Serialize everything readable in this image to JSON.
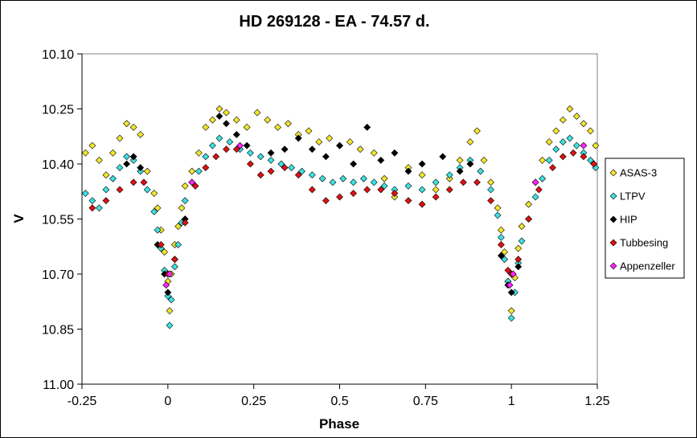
{
  "chart_data": {
    "type": "scatter",
    "title": "HD 269128  - EA - 74.57 d.",
    "xlabel": "Phase",
    "ylabel": "V",
    "xlim": [
      -0.25,
      1.25
    ],
    "ylim": [
      10.1,
      11.0
    ],
    "y_inverted": true,
    "x_ticks": [
      -0.25,
      0,
      0.25,
      0.5,
      0.75,
      1,
      1.25
    ],
    "x_tick_labels": [
      "-0.25",
      "0",
      "0.25",
      "0.5",
      "0.75",
      "1",
      "1.25"
    ],
    "y_ticks": [
      10.1,
      10.25,
      10.4,
      10.55,
      10.7,
      10.85,
      11.0
    ],
    "y_tick_labels": [
      "10.10",
      "10.25",
      "10.40",
      "10.55",
      "10.70",
      "10.85",
      "11.00"
    ],
    "grid": false,
    "legend_position": "right",
    "marker": "diamond",
    "series": [
      {
        "name": "ASAS-3",
        "color": "#f2e62e",
        "points": [
          [
            -0.24,
            10.37
          ],
          [
            -0.22,
            10.35
          ],
          [
            -0.2,
            10.39
          ],
          [
            -0.18,
            10.43
          ],
          [
            -0.16,
            10.37
          ],
          [
            -0.14,
            10.33
          ],
          [
            -0.12,
            10.29
          ],
          [
            -0.1,
            10.3
          ],
          [
            -0.08,
            10.32
          ],
          [
            -0.06,
            10.42
          ],
          [
            -0.04,
            10.48
          ],
          [
            -0.03,
            10.52
          ],
          [
            -0.02,
            10.58
          ],
          [
            -0.01,
            10.64
          ],
          [
            0,
            10.72
          ],
          [
            0.005,
            10.8
          ],
          [
            0.01,
            10.7
          ],
          [
            0.02,
            10.62
          ],
          [
            0.03,
            10.57
          ],
          [
            0.04,
            10.52
          ],
          [
            0.05,
            10.46
          ],
          [
            0.07,
            10.42
          ],
          [
            0.09,
            10.37
          ],
          [
            0.11,
            10.3
          ],
          [
            0.13,
            10.28
          ],
          [
            0.15,
            10.25
          ],
          [
            0.17,
            10.26
          ],
          [
            0.2,
            10.28
          ],
          [
            0.23,
            10.3
          ],
          [
            0.26,
            10.26
          ],
          [
            0.29,
            10.28
          ],
          [
            0.32,
            10.3
          ],
          [
            0.35,
            10.29
          ],
          [
            0.38,
            10.32
          ],
          [
            0.41,
            10.31
          ],
          [
            0.44,
            10.34
          ],
          [
            0.47,
            10.33
          ],
          [
            0.5,
            10.35
          ],
          [
            0.53,
            10.34
          ],
          [
            0.56,
            10.36
          ],
          [
            0.6,
            10.37
          ],
          [
            0.63,
            10.44
          ],
          [
            0.66,
            10.49
          ],
          [
            0.7,
            10.41
          ],
          [
            0.74,
            10.43
          ],
          [
            0.78,
            10.47
          ],
          [
            0.82,
            10.44
          ],
          [
            0.85,
            10.39
          ],
          [
            0.88,
            10.34
          ],
          [
            0.9,
            10.31
          ],
          [
            0.92,
            10.39
          ],
          [
            0.94,
            10.45
          ],
          [
            0.96,
            10.52
          ],
          [
            0.97,
            10.58
          ],
          [
            0.98,
            10.64
          ],
          [
            0.99,
            10.72
          ],
          [
            1.0,
            10.8
          ],
          [
            1.01,
            10.71
          ],
          [
            1.02,
            10.63
          ],
          [
            1.03,
            10.57
          ],
          [
            1.05,
            10.51
          ],
          [
            1.07,
            10.45
          ],
          [
            1.09,
            10.39
          ],
          [
            1.11,
            10.34
          ],
          [
            1.13,
            10.31
          ],
          [
            1.15,
            10.28
          ],
          [
            1.17,
            10.25
          ],
          [
            1.19,
            10.27
          ],
          [
            1.21,
            10.29
          ],
          [
            1.23,
            10.31
          ],
          [
            1.245,
            10.35
          ]
        ]
      },
      {
        "name": "LTPV",
        "color": "#3de0e0",
        "points": [
          [
            -0.24,
            10.48
          ],
          [
            -0.22,
            10.5
          ],
          [
            -0.2,
            10.52
          ],
          [
            -0.18,
            10.47
          ],
          [
            -0.16,
            10.44
          ],
          [
            -0.14,
            10.41
          ],
          [
            -0.12,
            10.38
          ],
          [
            -0.1,
            10.39
          ],
          [
            -0.08,
            10.42
          ],
          [
            -0.06,
            10.47
          ],
          [
            -0.04,
            10.53
          ],
          [
            -0.03,
            10.58
          ],
          [
            -0.02,
            10.63
          ],
          [
            -0.01,
            10.69
          ],
          [
            0,
            10.76
          ],
          [
            0.005,
            10.84
          ],
          [
            0.01,
            10.77
          ],
          [
            0.02,
            10.68
          ],
          [
            0.03,
            10.62
          ],
          [
            0.04,
            10.56
          ],
          [
            0.05,
            10.5
          ],
          [
            0.07,
            10.45
          ],
          [
            0.09,
            10.42
          ],
          [
            0.11,
            10.38
          ],
          [
            0.13,
            10.35
          ],
          [
            0.15,
            10.33
          ],
          [
            0.18,
            10.34
          ],
          [
            0.21,
            10.36
          ],
          [
            0.24,
            10.37
          ],
          [
            0.27,
            10.38
          ],
          [
            0.3,
            10.39
          ],
          [
            0.33,
            10.4
          ],
          [
            0.36,
            10.41
          ],
          [
            0.39,
            10.42
          ],
          [
            0.42,
            10.43
          ],
          [
            0.45,
            10.44
          ],
          [
            0.48,
            10.45
          ],
          [
            0.51,
            10.44
          ],
          [
            0.54,
            10.45
          ],
          [
            0.57,
            10.44
          ],
          [
            0.6,
            10.45
          ],
          [
            0.63,
            10.46
          ],
          [
            0.66,
            10.47
          ],
          [
            0.7,
            10.46
          ],
          [
            0.74,
            10.47
          ],
          [
            0.78,
            10.45
          ],
          [
            0.82,
            10.43
          ],
          [
            0.85,
            10.41
          ],
          [
            0.88,
            10.39
          ],
          [
            0.91,
            10.42
          ],
          [
            0.94,
            10.47
          ],
          [
            0.96,
            10.54
          ],
          [
            0.97,
            10.6
          ],
          [
            0.98,
            10.66
          ],
          [
            0.99,
            10.72
          ],
          [
            1.0,
            10.82
          ],
          [
            1.01,
            10.75
          ],
          [
            1.02,
            10.67
          ],
          [
            1.03,
            10.61
          ],
          [
            1.05,
            10.55
          ],
          [
            1.07,
            10.49
          ],
          [
            1.09,
            10.44
          ],
          [
            1.11,
            10.39
          ],
          [
            1.13,
            10.36
          ],
          [
            1.15,
            10.34
          ],
          [
            1.17,
            10.33
          ],
          [
            1.19,
            10.35
          ],
          [
            1.21,
            10.37
          ],
          [
            1.23,
            10.39
          ],
          [
            1.245,
            10.41
          ]
        ]
      },
      {
        "name": "HIP",
        "color": "#000000",
        "points": [
          [
            -0.12,
            10.4
          ],
          [
            -0.1,
            10.38
          ],
          [
            -0.08,
            10.41
          ],
          [
            -0.03,
            10.62
          ],
          [
            -0.01,
            10.7
          ],
          [
            0,
            10.75
          ],
          [
            0.02,
            10.66
          ],
          [
            0.05,
            10.55
          ],
          [
            0.15,
            10.27
          ],
          [
            0.17,
            10.29
          ],
          [
            0.2,
            10.32
          ],
          [
            0.23,
            10.35
          ],
          [
            0.3,
            10.37
          ],
          [
            0.34,
            10.36
          ],
          [
            0.38,
            10.33
          ],
          [
            0.42,
            10.36
          ],
          [
            0.46,
            10.38
          ],
          [
            0.5,
            10.35
          ],
          [
            0.54,
            10.4
          ],
          [
            0.58,
            10.3
          ],
          [
            0.62,
            10.39
          ],
          [
            0.66,
            10.37
          ],
          [
            0.7,
            10.42
          ],
          [
            0.74,
            10.4
          ],
          [
            0.8,
            10.38
          ],
          [
            0.85,
            10.42
          ],
          [
            0.88,
            10.4
          ],
          [
            0.97,
            10.65
          ],
          [
            0.99,
            10.73
          ],
          [
            1.0,
            10.75
          ],
          [
            1.02,
            10.68
          ]
        ]
      },
      {
        "name": "Tubbesing",
        "color": "#dd1111",
        "points": [
          [
            -0.22,
            10.52
          ],
          [
            -0.18,
            10.5
          ],
          [
            -0.14,
            10.47
          ],
          [
            -0.1,
            10.45
          ],
          [
            -0.07,
            10.45
          ],
          [
            -0.02,
            10.62
          ],
          [
            0,
            10.7
          ],
          [
            0.02,
            10.66
          ],
          [
            0.05,
            10.56
          ],
          [
            0.08,
            10.46
          ],
          [
            0.11,
            10.41
          ],
          [
            0.14,
            10.38
          ],
          [
            0.17,
            10.36
          ],
          [
            0.2,
            10.36
          ],
          [
            0.24,
            10.4
          ],
          [
            0.27,
            10.43
          ],
          [
            0.3,
            10.42
          ],
          [
            0.34,
            10.41
          ],
          [
            0.38,
            10.43
          ],
          [
            0.42,
            10.47
          ],
          [
            0.46,
            10.5
          ],
          [
            0.5,
            10.49
          ],
          [
            0.54,
            10.48
          ],
          [
            0.58,
            10.47
          ],
          [
            0.62,
            10.47
          ],
          [
            0.66,
            10.48
          ],
          [
            0.7,
            10.5
          ],
          [
            0.74,
            10.51
          ],
          [
            0.78,
            10.49
          ],
          [
            0.82,
            10.47
          ],
          [
            0.86,
            10.45
          ],
          [
            0.9,
            10.45
          ],
          [
            0.94,
            10.5
          ],
          [
            0.97,
            10.62
          ],
          [
            0.99,
            10.69
          ],
          [
            1.0,
            10.7
          ],
          [
            1.02,
            10.66
          ],
          [
            1.05,
            10.55
          ],
          [
            1.08,
            10.47
          ],
          [
            1.12,
            10.41
          ],
          [
            1.15,
            10.38
          ],
          [
            1.18,
            10.37
          ],
          [
            1.21,
            10.38
          ],
          [
            1.24,
            10.4
          ]
        ]
      },
      {
        "name": "Appenzeller",
        "color": "#ff22ff",
        "points": [
          [
            -0.005,
            10.73
          ],
          [
            0.005,
            10.7
          ],
          [
            0.07,
            10.45
          ],
          [
            0.21,
            10.35
          ],
          [
            0.995,
            10.73
          ],
          [
            1.005,
            10.7
          ],
          [
            1.07,
            10.45
          ],
          [
            1.21,
            10.35
          ]
        ]
      }
    ]
  }
}
